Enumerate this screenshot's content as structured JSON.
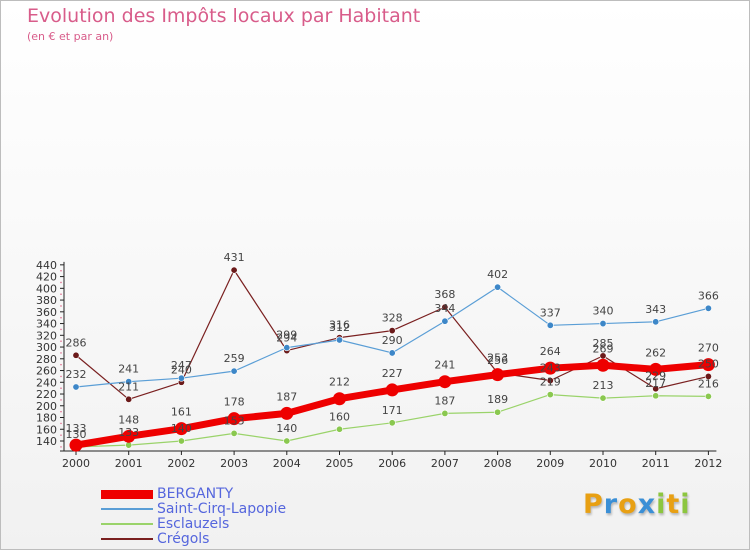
{
  "title": "Evolution des Impôts locaux par Habitant",
  "subtitle": "(en € et par an)",
  "logo": {
    "letters": [
      "P",
      "r",
      "o",
      "x",
      "i",
      "t",
      "i"
    ],
    "colors": [
      "#e8a013",
      "#3a8fd6",
      "#e8a013",
      "#3a8fd6",
      "#8cc63f",
      "#e8a013",
      "#8cc63f"
    ]
  },
  "chart_data": {
    "type": "line",
    "title": "Evolution des Impôts locaux par Habitant",
    "subtitle": "(en € et par an)",
    "xlabel": "",
    "ylabel": "",
    "x": [
      "2000",
      "2001",
      "2002",
      "2003",
      "2004",
      "2005",
      "2006",
      "2007",
      "2008",
      "2009",
      "2010",
      "2011",
      "2012"
    ],
    "y_ticks": [
      140,
      160,
      180,
      200,
      220,
      240,
      260,
      280,
      300,
      320,
      340,
      360,
      380,
      400,
      420,
      440
    ],
    "ylim": [
      120,
      445
    ],
    "grid": false,
    "legend_position": "bottom-left",
    "series": [
      {
        "name": "Crégols",
        "values": [
          286,
          211,
          240,
          431,
          294,
          316,
          328,
          368,
          256,
          243,
          285,
          229,
          250
        ],
        "color": "#7a2020",
        "stroke": 1.2,
        "marker": 3.2,
        "legend_stroke": 2,
        "marker_fill": "#6b1a1a"
      },
      {
        "name": "Saint-Cirq-Lapopie",
        "values": [
          232,
          241,
          247,
          259,
          299,
          312,
          290,
          344,
          402,
          337,
          340,
          343,
          366
        ],
        "color": "#5a9ed6",
        "stroke": 1.2,
        "marker": 3.2,
        "legend_stroke": 2,
        "marker_fill": "#3d87c8"
      },
      {
        "name": "Esclauzels",
        "values": [
          130,
          133,
          140,
          153,
          140,
          160,
          171,
          187,
          189,
          219,
          213,
          217,
          216
        ],
        "color": "#9ad36a",
        "stroke": 1.2,
        "marker": 3.2,
        "legend_stroke": 2,
        "marker_fill": "#8ac84f"
      },
      {
        "name": "BERGANTY",
        "values": [
          133,
          148,
          161,
          178,
          187,
          212,
          227,
          241,
          253,
          264,
          269,
          262,
          270
        ],
        "color": "#ee0000",
        "stroke": 7,
        "marker": 6.5,
        "legend_stroke": 9,
        "marker_fill": "#ee0000"
      }
    ],
    "legend_order": [
      "BERGANTY",
      "Saint-Cirq-Lapopie",
      "Esclauzels",
      "Crégols"
    ]
  }
}
